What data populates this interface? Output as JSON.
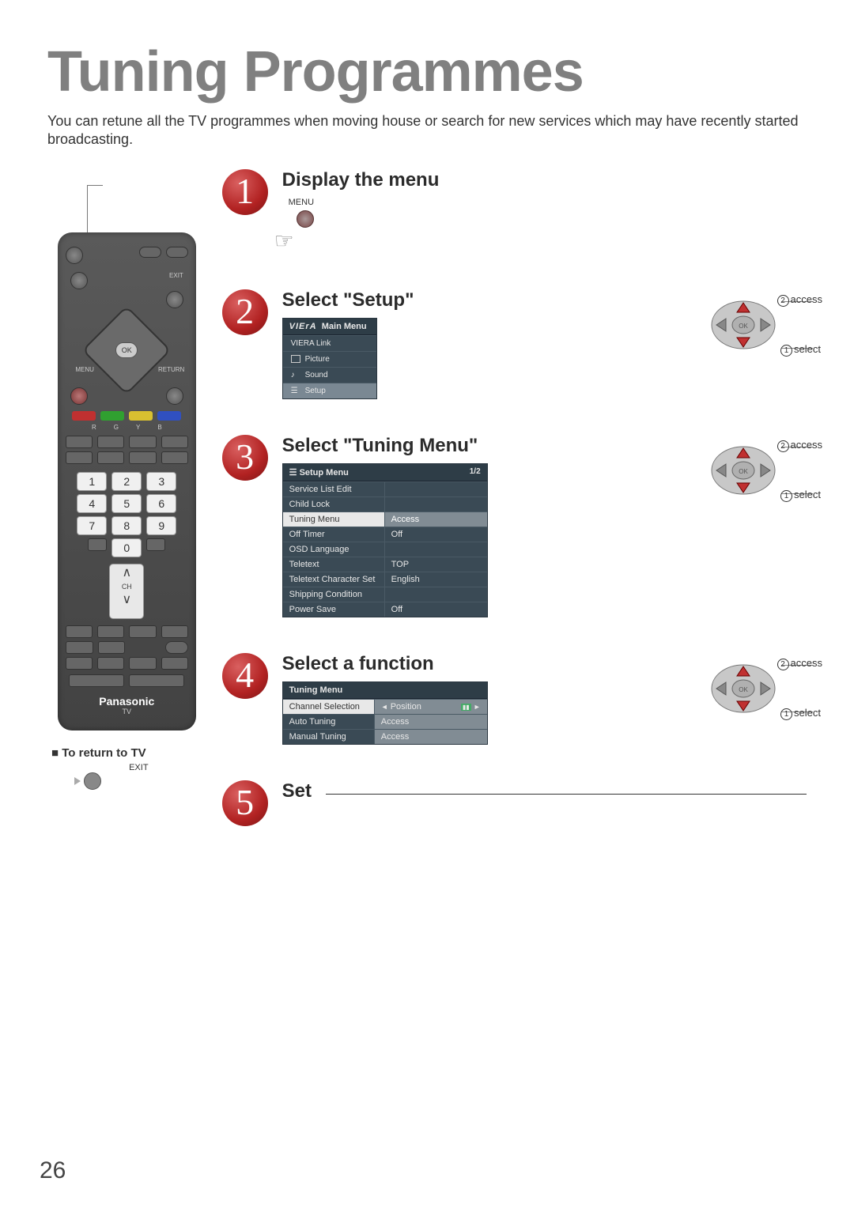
{
  "page_number": "26",
  "title": "Tuning Programmes",
  "intro": "You can retune all the TV programmes when moving house or search for new services which may have recently started broadcasting.",
  "remote": {
    "brand": "Panasonic",
    "model_label": "TV",
    "keypad": [
      "1",
      "2",
      "3",
      "4",
      "5",
      "6",
      "7",
      "8",
      "9",
      "0"
    ],
    "ok": "OK",
    "exit_label": "EXIT",
    "menu_label": "MENU",
    "return_label": "RETURN",
    "ch_label": "CH",
    "color_keys": [
      "R",
      "G",
      "Y",
      "B"
    ],
    "color_hex": [
      "#c03030",
      "#30a030",
      "#d8c030",
      "#3050c0"
    ]
  },
  "return_to_tv": "To return to TV",
  "exit_caption": "EXIT",
  "steps": {
    "1": {
      "title": "Display the menu",
      "hint": "MENU"
    },
    "2": {
      "title": "Select \"Setup\"",
      "main_menu": {
        "brand": "VIErA",
        "header": "Main Menu",
        "items": [
          "VIERA Link",
          "Picture",
          "Sound",
          "Setup"
        ],
        "highlighted_index": 3
      }
    },
    "3": {
      "title": "Select \"Tuning Menu\"",
      "setup_menu": {
        "header": "Setup Menu",
        "page": "1/2",
        "rows": [
          {
            "l": "Service List Edit",
            "r": ""
          },
          {
            "l": "Child Lock",
            "r": ""
          },
          {
            "l": "Tuning Menu",
            "r": "Access",
            "hl": true
          },
          {
            "l": "Off Timer",
            "r": "Off"
          },
          {
            "l": "OSD Language",
            "r": ""
          },
          {
            "l": "Teletext",
            "r": "TOP"
          },
          {
            "l": "Teletext Character Set",
            "r": "English"
          },
          {
            "l": "Shipping Condition",
            "r": ""
          },
          {
            "l": "Power Save",
            "r": "Off"
          }
        ]
      }
    },
    "4": {
      "title": "Select a function",
      "tuning_menu": {
        "header": "Tuning Menu",
        "rows": [
          {
            "l": "Channel Selection",
            "r": "Position",
            "arrows": true,
            "hl": true
          },
          {
            "l": "Auto Tuning",
            "r": "Access"
          },
          {
            "l": "Manual Tuning",
            "r": "Access"
          }
        ]
      }
    },
    "5": {
      "title": "Set"
    }
  },
  "nav": {
    "access": "access",
    "select": "select",
    "num1": "1",
    "num2": "2",
    "ok": "OK"
  }
}
